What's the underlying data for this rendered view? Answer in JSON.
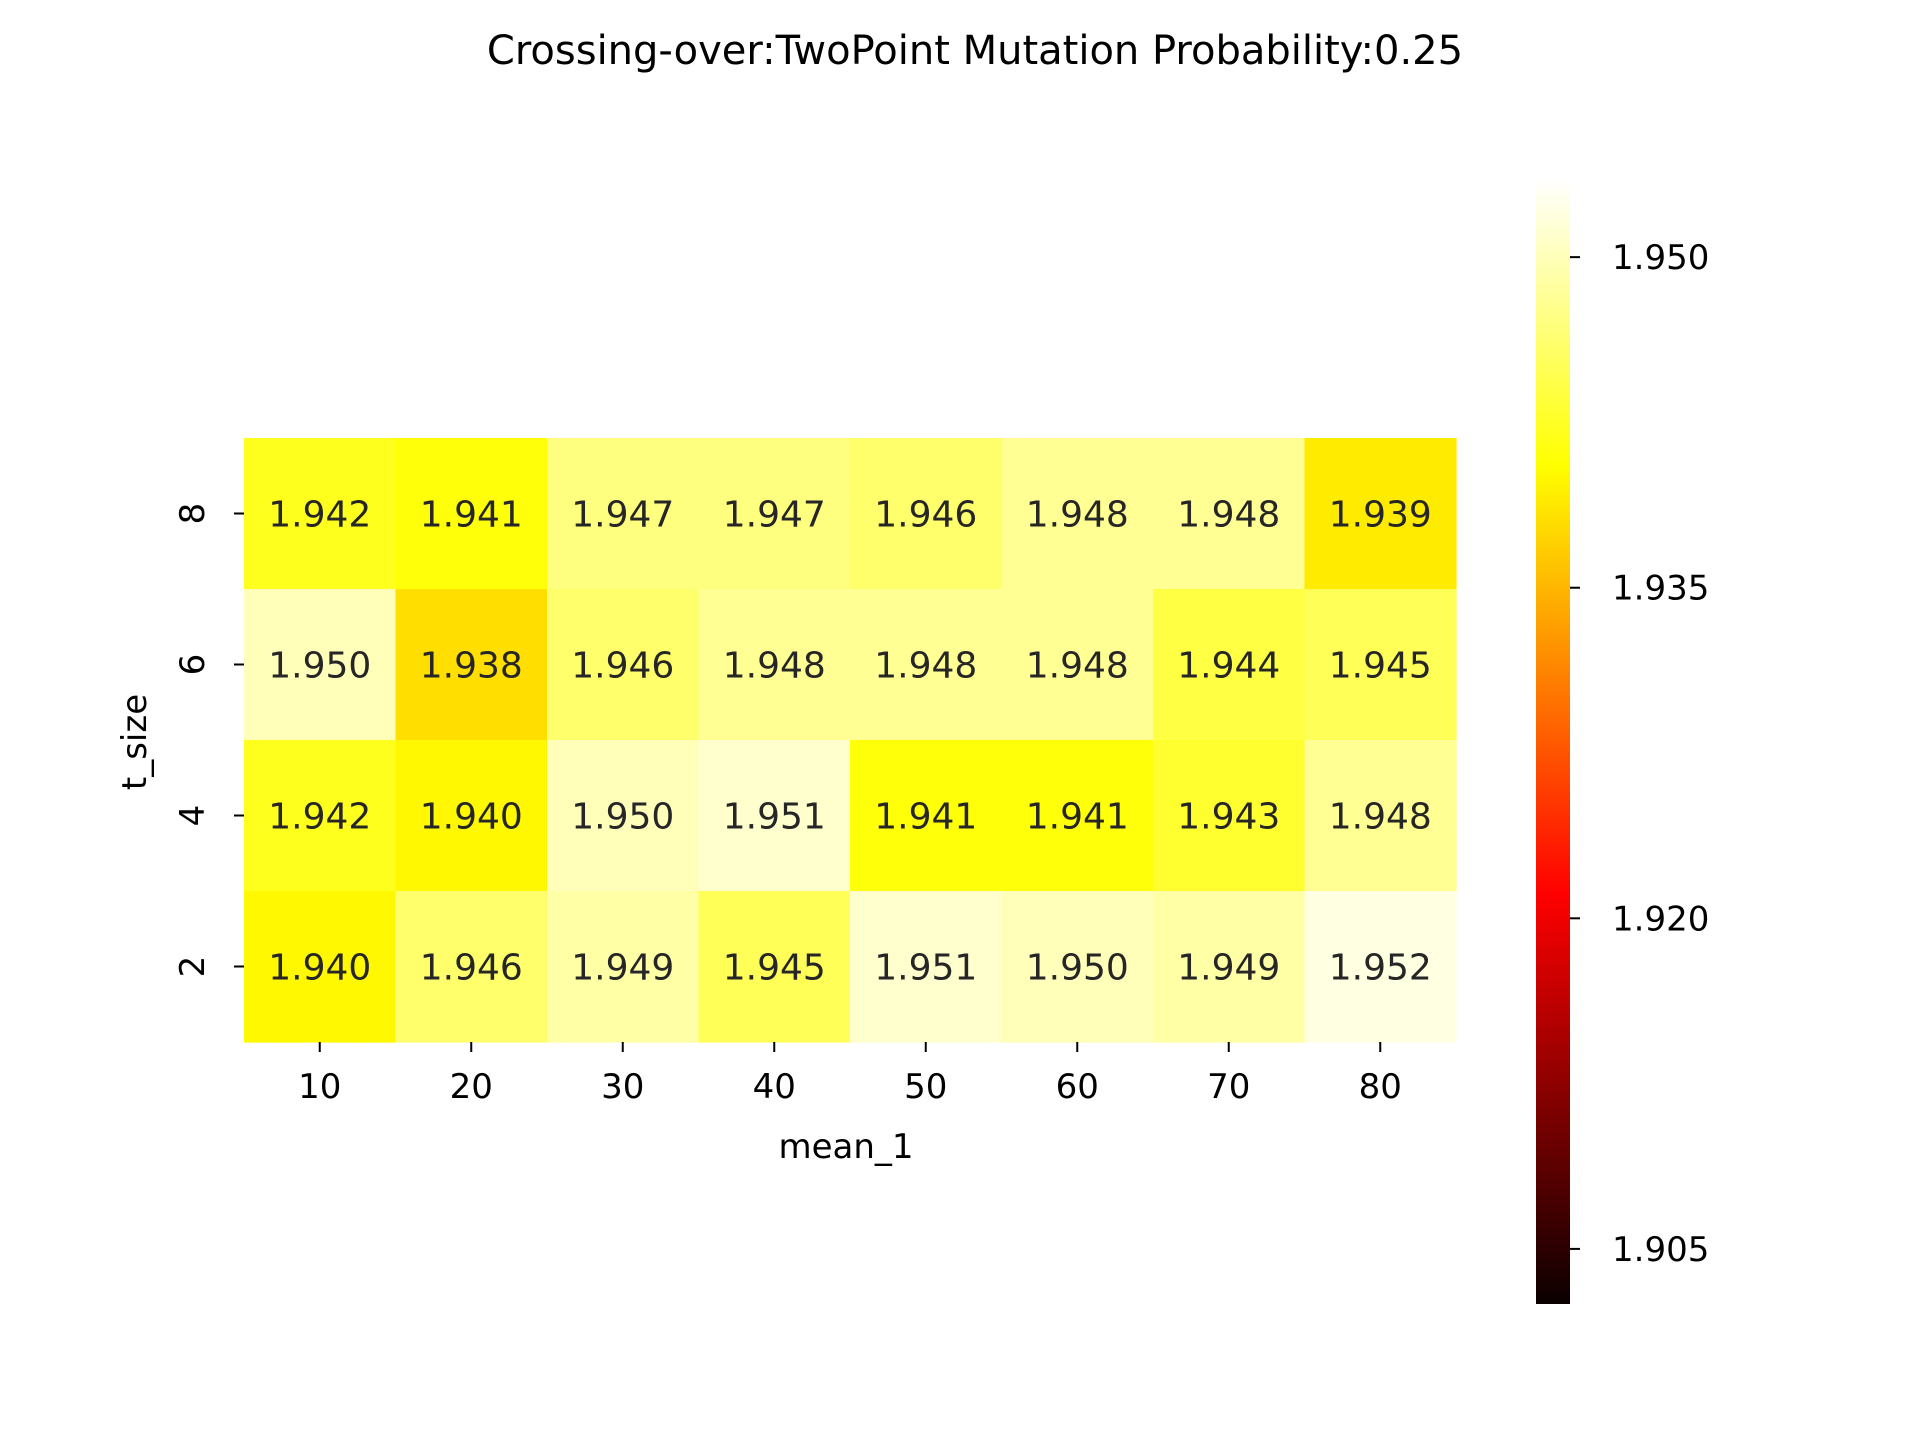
{
  "chart_data": {
    "type": "heatmap",
    "title": "Crossing-over:TwoPoint Mutation Probability:0.25",
    "xlabel": "mean_1",
    "ylabel": "t_size",
    "x": [
      "10",
      "20",
      "30",
      "40",
      "50",
      "60",
      "70",
      "80"
    ],
    "y": [
      "8",
      "6",
      "4",
      "2"
    ],
    "values": [
      [
        1.942,
        1.941,
        1.947,
        1.947,
        1.946,
        1.948,
        1.948,
        1.939
      ],
      [
        1.95,
        1.938,
        1.946,
        1.948,
        1.948,
        1.948,
        1.944,
        1.945
      ],
      [
        1.942,
        1.94,
        1.95,
        1.951,
        1.941,
        1.941,
        1.943,
        1.948
      ],
      [
        1.94,
        1.946,
        1.949,
        1.945,
        1.951,
        1.95,
        1.949,
        1.952
      ]
    ],
    "value_labels": [
      [
        "1.942",
        "1.941",
        "1.947",
        "1.947",
        "1.946",
        "1.948",
        "1.948",
        "1.939"
      ],
      [
        "1.950",
        "1.938",
        "1.946",
        "1.948",
        "1.948",
        "1.948",
        "1.944",
        "1.945"
      ],
      [
        "1.942",
        "1.940",
        "1.950",
        "1.951",
        "1.941",
        "1.941",
        "1.943",
        "1.948"
      ],
      [
        "1.940",
        "1.946",
        "1.949",
        "1.945",
        "1.951",
        "1.950",
        "1.949",
        "1.952"
      ]
    ],
    "colorbar": {
      "colormap": "hot",
      "range": [
        1.9025,
        1.9535
      ],
      "ticks": [
        1.905,
        1.92,
        1.935,
        1.95
      ],
      "tick_labels": [
        "1.905",
        "1.920",
        "1.935",
        "1.950"
      ]
    },
    "annotation_color": "#262626"
  }
}
